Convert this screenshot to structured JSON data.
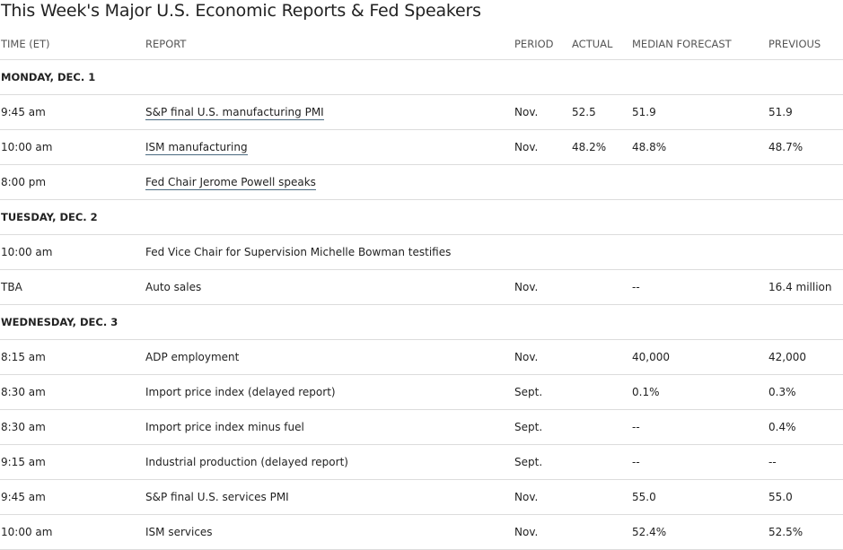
{
  "title": "This Week's Major U.S. Economic Reports & Fed Speakers",
  "columns": {
    "time": "TIME (ET)",
    "report": "REPORT",
    "period": "PERIOD",
    "actual": "ACTUAL",
    "forecast": "MEDIAN FORECAST",
    "previous": "PREVIOUS"
  },
  "days": [
    {
      "label": "MONDAY, DEC. 1",
      "rows": [
        {
          "time": "9:45 am",
          "report": "S&P final U.S. manufacturing PMI",
          "link": true,
          "period": "Nov.",
          "actual": "52.5",
          "forecast": "51.9",
          "previous": "51.9"
        },
        {
          "time": "10:00 am",
          "report": "ISM manufacturing",
          "link": true,
          "period": "Nov.",
          "actual": "48.2%",
          "forecast": "48.8%",
          "previous": "48.7%"
        },
        {
          "time": "8:00 pm",
          "report": "Fed Chair Jerome Powell speaks",
          "link": true,
          "period": "",
          "actual": "",
          "forecast": "",
          "previous": ""
        }
      ]
    },
    {
      "label": "TUESDAY, DEC. 2",
      "rows": [
        {
          "time": "10:00 am",
          "report": "Fed Vice Chair for Supervision Michelle Bowman testifies",
          "link": false,
          "period": "",
          "actual": "",
          "forecast": "",
          "previous": ""
        },
        {
          "time": "TBA",
          "report": "Auto sales",
          "link": false,
          "period": "Nov.",
          "actual": "",
          "forecast": "--",
          "previous": "16.4 million"
        }
      ]
    },
    {
      "label": "WEDNESDAY, DEC. 3",
      "rows": [
        {
          "time": "8:15 am",
          "report": "ADP employment",
          "link": false,
          "period": "Nov.",
          "actual": "",
          "forecast": "40,000",
          "previous": "42,000"
        },
        {
          "time": "8:30 am",
          "report": "Import price index (delayed report)",
          "link": false,
          "period": "Sept.",
          "actual": "",
          "forecast": "0.1%",
          "previous": "0.3%"
        },
        {
          "time": "8:30 am",
          "report": "Import price index minus fuel",
          "link": false,
          "period": "Sept.",
          "actual": "",
          "forecast": "--",
          "previous": "0.4%"
        },
        {
          "time": "9:15 am",
          "report": "Industrial production (delayed report)",
          "link": false,
          "period": "Sept.",
          "actual": "",
          "forecast": "--",
          "previous": "--"
        },
        {
          "time": "9:45 am",
          "report": "S&P final U.S. services PMI",
          "link": false,
          "period": "Nov.",
          "actual": "",
          "forecast": "55.0",
          "previous": "55.0"
        },
        {
          "time": "10:00 am",
          "report": "ISM services",
          "link": false,
          "period": "Nov.",
          "actual": "",
          "forecast": "52.4%",
          "previous": "52.5%"
        }
      ]
    }
  ]
}
